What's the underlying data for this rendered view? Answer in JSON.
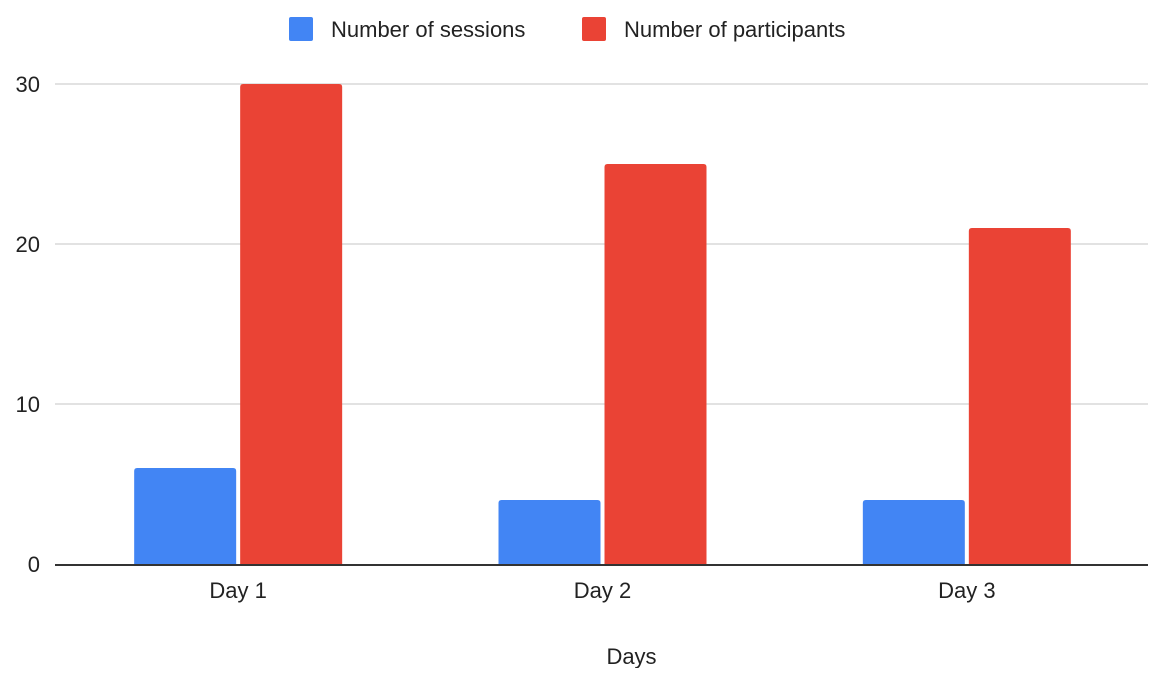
{
  "chart_data": {
    "type": "bar",
    "title": "",
    "xlabel": "Days",
    "ylabel": "",
    "categories": [
      "Day 1",
      "Day 2",
      "Day 3"
    ],
    "series": [
      {
        "name": "Number of sessions",
        "values": [
          6,
          4,
          4
        ],
        "color": "#4285f4"
      },
      {
        "name": "Number of participants",
        "values": [
          30,
          25,
          21
        ],
        "color": "#ea4335"
      }
    ],
    "ylim": [
      0,
      30
    ],
    "yticks": [
      0,
      10,
      20,
      30
    ],
    "grid": true,
    "legend_position": "top"
  }
}
